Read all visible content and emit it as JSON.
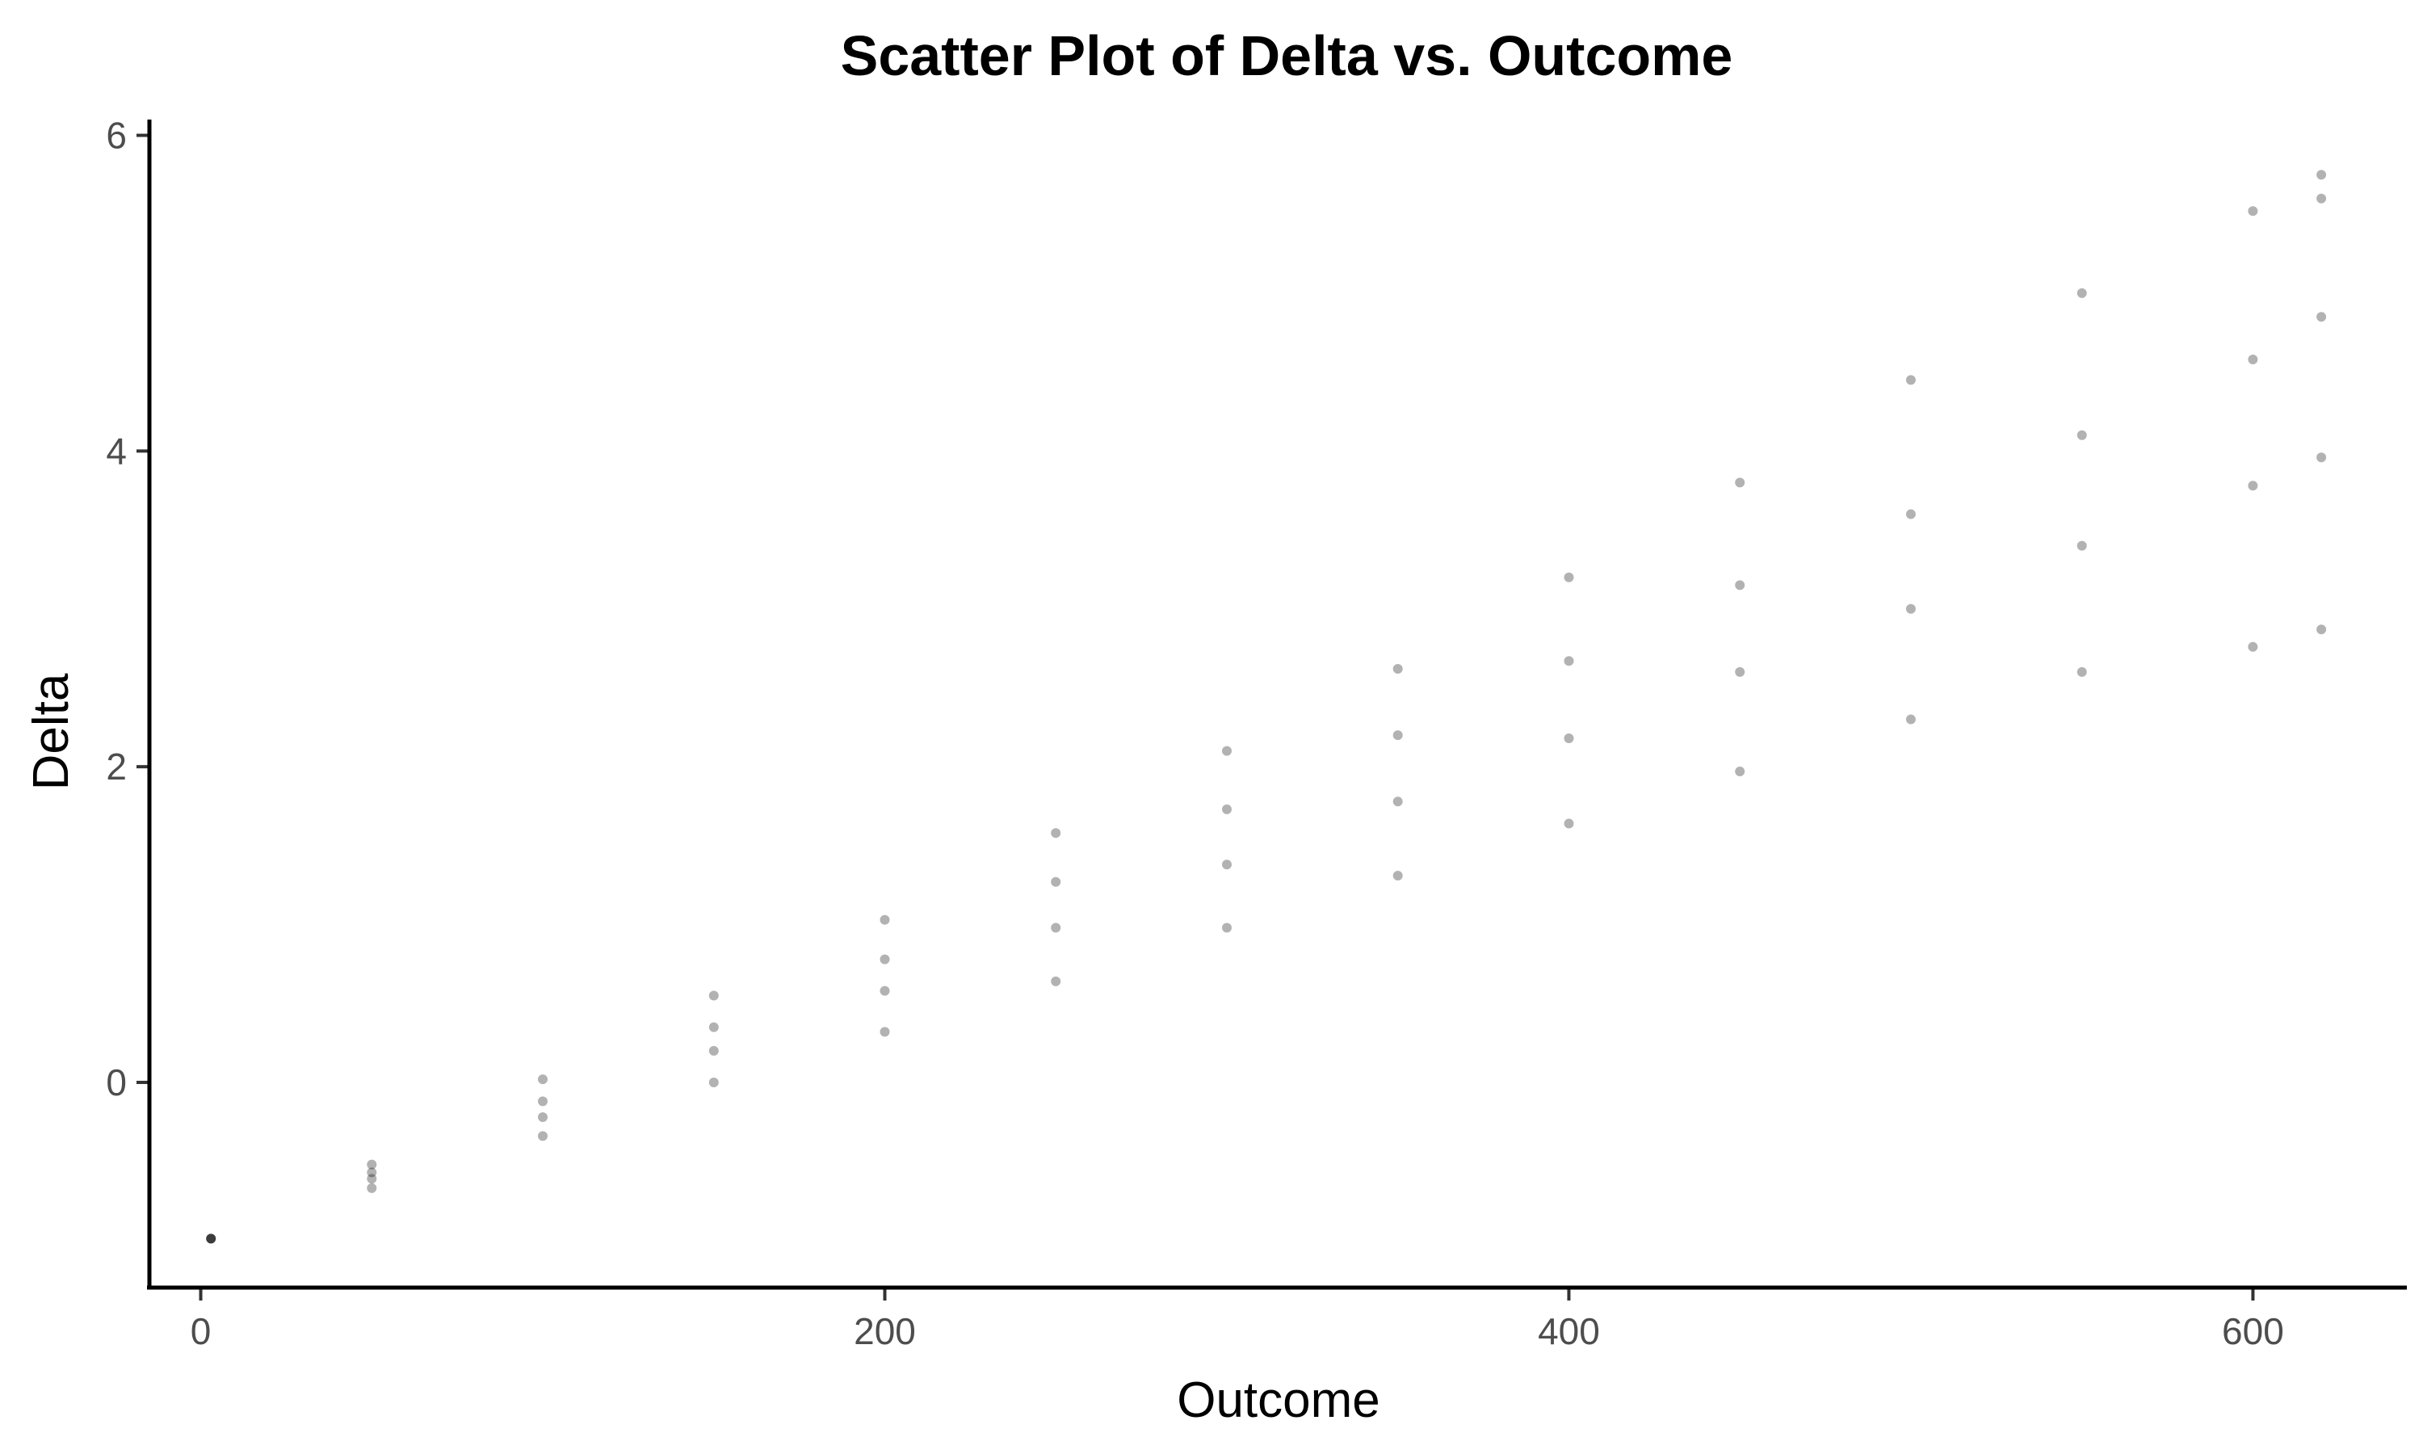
{
  "chart_data": {
    "type": "scatter",
    "title": "Scatter Plot of Delta vs. Outcome",
    "xlabel": "Outcome",
    "ylabel": "Delta",
    "xlim": [
      -15,
      645
    ],
    "ylim": [
      -1.3,
      6.1
    ],
    "x_ticks": [
      0,
      200,
      400,
      600
    ],
    "x_tick_labels": [
      "0",
      "200",
      "400",
      "600"
    ],
    "y_ticks": [
      0,
      2,
      4,
      6
    ],
    "y_tick_labels": [
      "0",
      "2",
      "4",
      "6"
    ],
    "grid": false,
    "legend": "none",
    "point_color": "#000000",
    "point_opacity": 0.3,
    "series": [
      {
        "values": [
          [
            3,
            -0.99
          ],
          [
            50,
            -0.52
          ],
          [
            100,
            0.02
          ],
          [
            150,
            0.55
          ],
          [
            200,
            1.03
          ],
          [
            250,
            1.58
          ],
          [
            300,
            2.1
          ],
          [
            350,
            2.62
          ],
          [
            400,
            3.2
          ],
          [
            450,
            3.8
          ],
          [
            500,
            4.45
          ],
          [
            550,
            5.0
          ],
          [
            600,
            5.52
          ],
          [
            620,
            5.75
          ],
          [
            620,
            5.6
          ]
        ]
      },
      {
        "values": [
          [
            3,
            -0.99
          ],
          [
            50,
            -0.57
          ],
          [
            100,
            -0.12
          ],
          [
            150,
            0.35
          ],
          [
            200,
            0.78
          ],
          [
            250,
            1.27
          ],
          [
            300,
            1.73
          ],
          [
            350,
            2.2
          ],
          [
            400,
            2.67
          ],
          [
            450,
            3.15
          ],
          [
            500,
            3.6
          ],
          [
            550,
            4.1
          ],
          [
            600,
            4.58
          ],
          [
            620,
            4.85
          ]
        ]
      },
      {
        "values": [
          [
            3,
            -0.99
          ],
          [
            50,
            -0.61
          ],
          [
            100,
            -0.22
          ],
          [
            150,
            0.2
          ],
          [
            200,
            0.58
          ],
          [
            250,
            0.98
          ],
          [
            300,
            1.38
          ],
          [
            350,
            1.78
          ],
          [
            400,
            2.18
          ],
          [
            450,
            2.6
          ],
          [
            500,
            3.0
          ],
          [
            550,
            3.4
          ],
          [
            600,
            3.78
          ],
          [
            620,
            3.96
          ]
        ]
      },
      {
        "values": [
          [
            3,
            -0.99
          ],
          [
            50,
            -0.67
          ],
          [
            100,
            -0.34
          ],
          [
            150,
            0.0
          ],
          [
            200,
            0.32
          ],
          [
            250,
            0.64
          ],
          [
            300,
            0.98
          ],
          [
            350,
            1.31
          ],
          [
            400,
            1.64
          ],
          [
            450,
            1.97
          ],
          [
            500,
            2.3
          ],
          [
            550,
            2.6
          ],
          [
            600,
            2.76
          ],
          [
            620,
            2.87
          ]
        ]
      }
    ]
  }
}
